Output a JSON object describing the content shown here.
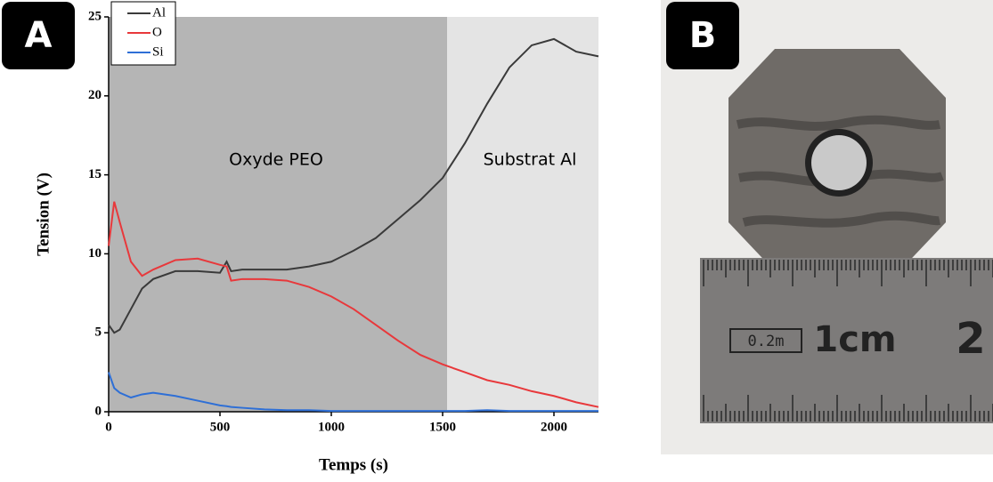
{
  "panels": {
    "a": "A",
    "b": "B"
  },
  "chart_data": {
    "type": "line",
    "xlabel": "Temps (s)",
    "ylabel": "Tension (V)",
    "x": [
      0,
      25,
      50,
      100,
      150,
      200,
      300,
      400,
      500,
      530,
      550,
      600,
      700,
      800,
      900,
      1000,
      1100,
      1200,
      1300,
      1400,
      1500,
      1600,
      1700,
      1800,
      1900,
      2000,
      2100,
      2200
    ],
    "series": [
      {
        "name": "Al",
        "color": "#3a3a3a",
        "values": [
          5.5,
          5.0,
          5.2,
          6.5,
          7.8,
          8.4,
          8.9,
          8.9,
          8.8,
          9.5,
          8.9,
          9.0,
          9.0,
          9.0,
          9.2,
          9.5,
          10.2,
          11.0,
          12.2,
          13.4,
          14.8,
          17.0,
          19.5,
          21.8,
          23.2,
          23.6,
          22.8,
          22.5
        ]
      },
      {
        "name": "O",
        "color": "#e8383b",
        "values": [
          10.5,
          13.3,
          12.0,
          9.5,
          8.6,
          9.0,
          9.6,
          9.7,
          9.3,
          9.2,
          8.3,
          8.4,
          8.4,
          8.3,
          7.9,
          7.3,
          6.5,
          5.5,
          4.5,
          3.6,
          3.0,
          2.5,
          2.0,
          1.7,
          1.3,
          1.0,
          0.6,
          0.3
        ]
      },
      {
        "name": "Si",
        "color": "#2e6fd6",
        "values": [
          2.5,
          1.5,
          1.2,
          0.9,
          1.1,
          1.2,
          1.0,
          0.7,
          0.4,
          0.35,
          0.3,
          0.25,
          0.15,
          0.1,
          0.1,
          0.05,
          0.05,
          0.05,
          0.05,
          0.05,
          0.05,
          0.05,
          0.1,
          0.05,
          0.05,
          0.05,
          0.05,
          0.05
        ]
      }
    ],
    "regions": [
      {
        "label": "Oxyde PEO",
        "start": 0,
        "end": 1520,
        "color": "#b5b5b5"
      },
      {
        "label": "Substrat Al",
        "start": 1520,
        "end": 2200,
        "color": "#e4e4e4"
      }
    ],
    "xlim": [
      0,
      2200
    ],
    "xticks": [
      0,
      500,
      1000,
      1500,
      2000
    ],
    "ylim": [
      0,
      25
    ],
    "yticks": [
      0,
      5,
      10,
      15,
      20,
      25
    ],
    "legend": "top-left"
  },
  "photo": {
    "ruler_labels": [
      "0.2m",
      "1cm",
      "2"
    ]
  }
}
